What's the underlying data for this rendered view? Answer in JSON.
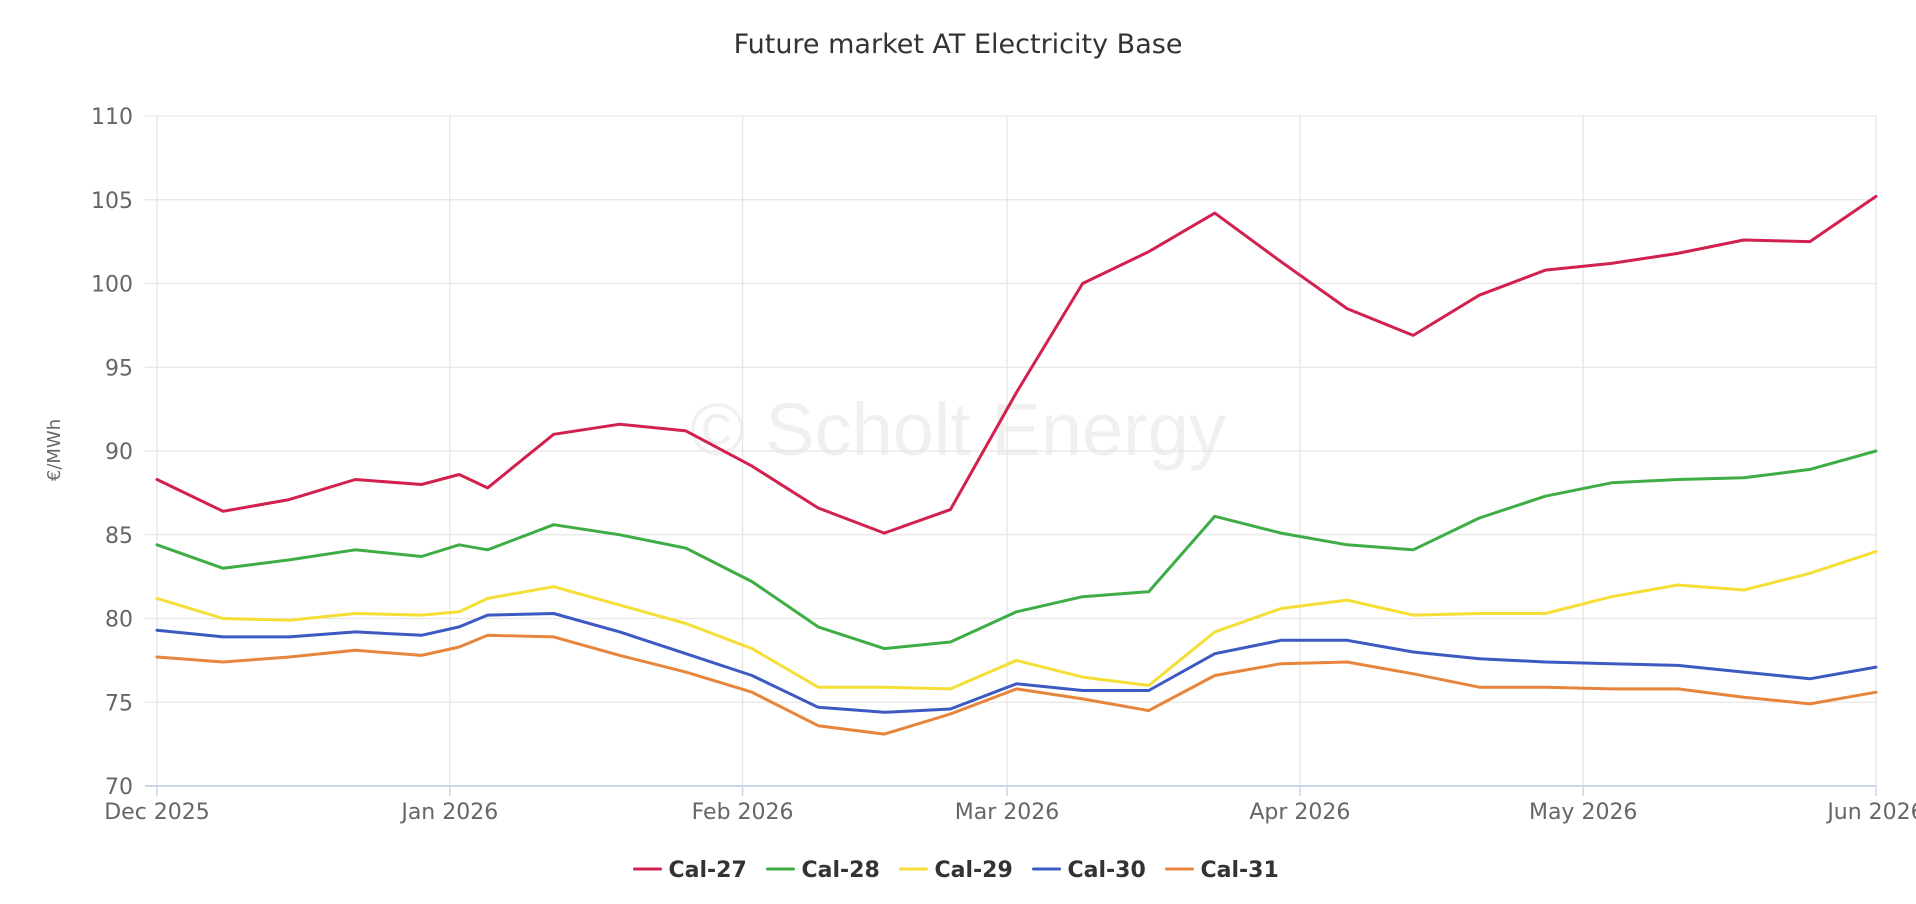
{
  "chart_data": {
    "type": "line",
    "title": "Future market AT Electricity Base",
    "ylabel": "€/MWh",
    "xlabel": "",
    "watermark": "© Scholt Energy",
    "ylim": [
      70,
      110
    ],
    "y_ticks": [
      70,
      75,
      80,
      85,
      90,
      95,
      100,
      105,
      110
    ],
    "xlim": [
      "2025-12-01",
      "2026-06-01"
    ],
    "x_ticks": [
      {
        "date": "2025-12-01",
        "label": "Dec 2025"
      },
      {
        "date": "2026-01-01",
        "label": "Jan 2026"
      },
      {
        "date": "2026-02-01",
        "label": "Feb 2026"
      },
      {
        "date": "2026-03-01",
        "label": "Mar 2026"
      },
      {
        "date": "2026-04-01",
        "label": "Apr 2026"
      },
      {
        "date": "2026-05-01",
        "label": "May 2026"
      },
      {
        "date": "2026-06-01",
        "label": "Jun 2026"
      }
    ],
    "grid": true,
    "legend_position": "bottom-center",
    "x": [
      "2025-12-01",
      "2025-12-08",
      "2025-12-15",
      "2025-12-22",
      "2025-12-29",
      "2026-01-02",
      "2026-01-05",
      "2026-01-12",
      "2026-01-19",
      "2026-01-26",
      "2026-02-02",
      "2026-02-09",
      "2026-02-16",
      "2026-02-23",
      "2026-03-02",
      "2026-03-09",
      "2026-03-16",
      "2026-03-23",
      "2026-03-30",
      "2026-04-06",
      "2026-04-13",
      "2026-04-20",
      "2026-04-27",
      "2026-05-04",
      "2026-05-11",
      "2026-05-18",
      "2026-05-25",
      "2026-06-01"
    ],
    "series": [
      {
        "name": "Cal-27",
        "color": "#d2214e",
        "values": [
          88.3,
          86.4,
          87.1,
          88.3,
          88.0,
          88.6,
          87.8,
          91.0,
          91.6,
          91.2,
          89.1,
          86.6,
          85.1,
          86.5,
          93.5,
          100.0,
          101.9,
          104.2,
          101.3,
          98.5,
          96.9,
          99.3,
          100.8,
          101.2,
          101.8,
          102.6,
          102.5,
          105.2
        ]
      },
      {
        "name": "Cal-28",
        "color": "#3fad46",
        "values": [
          84.4,
          83.0,
          83.5,
          84.1,
          83.7,
          84.4,
          84.1,
          85.6,
          85.0,
          84.2,
          82.2,
          79.5,
          78.2,
          78.6,
          80.4,
          81.3,
          81.6,
          86.1,
          85.1,
          84.4,
          84.1,
          86.0,
          87.3,
          88.1,
          88.3,
          88.4,
          88.9,
          90.0
        ]
      },
      {
        "name": "Cal-29",
        "color": "#f5de35",
        "values": [
          81.2,
          80.0,
          79.9,
          80.3,
          80.2,
          80.4,
          81.2,
          81.9,
          80.8,
          79.7,
          78.2,
          75.9,
          75.9,
          75.8,
          77.5,
          76.5,
          76.0,
          79.2,
          80.6,
          81.1,
          80.2,
          80.3,
          80.3,
          81.3,
          82.0,
          81.7,
          82.7,
          84.0
        ]
      },
      {
        "name": "Cal-30",
        "color": "#3d5ac2",
        "values": [
          79.3,
          78.9,
          78.9,
          79.2,
          79.0,
          79.5,
          80.2,
          80.3,
          79.2,
          77.9,
          76.6,
          74.7,
          74.4,
          74.6,
          76.1,
          75.7,
          75.7,
          77.9,
          78.7,
          78.7,
          78.0,
          77.6,
          77.4,
          77.3,
          77.2,
          76.8,
          76.4,
          77.1
        ]
      },
      {
        "name": "Cal-31",
        "color": "#e6853b",
        "values": [
          77.7,
          77.4,
          77.7,
          78.1,
          77.8,
          78.3,
          79.0,
          78.9,
          77.8,
          76.8,
          75.6,
          73.6,
          73.1,
          74.3,
          75.8,
          75.2,
          74.5,
          76.6,
          77.3,
          77.4,
          76.7,
          75.9,
          75.9,
          75.8,
          75.8,
          75.3,
          74.9,
          75.6
        ]
      }
    ]
  }
}
